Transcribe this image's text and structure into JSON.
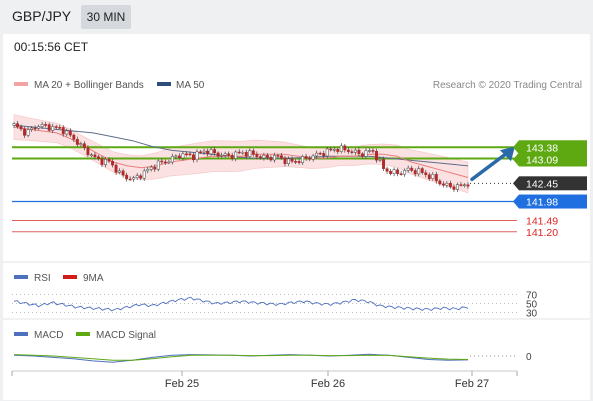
{
  "header": {
    "pair": "GBP/JPY",
    "timeframe": "30 MIN"
  },
  "clock": "00:15:56 CET",
  "price_legend": {
    "ma20": "MA 20 + Bollinger Bands",
    "ma50": "MA 50"
  },
  "credit": "Research © 2020 Trading Central",
  "rsi_legend": {
    "rsi": "RSI",
    "ma": "9MA"
  },
  "macd_legend": {
    "macd": "MACD",
    "signal": "MACD Signal"
  },
  "colors": {
    "resistance": "#5ea912",
    "support": "#1f6fe0",
    "pivot_red": "#e06060",
    "candle_up": "#ffffff",
    "candle_down": "#b02a2a",
    "ma20": "#e88080",
    "ma50": "#5d6d8a",
    "bollinger_fill": "#fbe1e1",
    "arrow": "#2b6aa8"
  },
  "chart_data": [
    {
      "type": "candlestick",
      "title": "",
      "x_tick_labels": [
        "Feb 25",
        "Feb 26",
        "Feb 27"
      ],
      "ylim": [
        140.6,
        144.6
      ],
      "legend": [
        "MA 20 + Bollinger Bands",
        "MA 50"
      ],
      "current_price": 142.45,
      "levels": [
        {
          "label": "143.38",
          "value": 143.38,
          "kind": "resistance"
        },
        {
          "label": "143.09",
          "value": 143.09,
          "kind": "resistance"
        },
        {
          "label": "142.45",
          "value": 142.45,
          "kind": "current"
        },
        {
          "label": "141.98",
          "value": 141.98,
          "kind": "pivot"
        },
        {
          "label": "141.49",
          "value": 141.49,
          "kind": "support"
        },
        {
          "label": "141.20",
          "value": 141.2,
          "kind": "support"
        }
      ],
      "close_path": [
        143.95,
        143.75,
        143.95,
        143.9,
        143.85,
        143.6,
        143.3,
        143.05,
        143.0,
        142.65,
        142.55,
        142.75,
        142.95,
        143.05,
        143.2,
        143.15,
        143.3,
        143.2,
        143.15,
        143.25,
        143.2,
        143.1,
        143.15,
        143.0,
        143.05,
        143.15,
        143.25,
        143.35,
        143.3,
        143.2,
        143.3,
        142.8,
        142.7,
        142.8,
        142.75,
        142.6,
        142.4,
        142.35,
        142.45
      ],
      "ma20": [
        143.9,
        143.85,
        143.8,
        143.75,
        143.6,
        143.4,
        143.2,
        143.0,
        142.9,
        142.85,
        142.9,
        143.0,
        143.05,
        143.1,
        143.15,
        143.15,
        143.15,
        143.2,
        143.2,
        143.2,
        143.15,
        143.1,
        143.1,
        143.15,
        143.15,
        143.2,
        143.2,
        143.15,
        143.0,
        142.9,
        142.8,
        142.7,
        142.6
      ],
      "ma50": [
        143.95,
        143.9,
        143.85,
        143.8,
        143.75,
        143.65,
        143.55,
        143.4,
        143.3,
        143.25,
        143.2,
        143.15,
        143.1,
        143.1,
        143.1,
        143.12,
        143.15,
        143.15,
        143.15,
        143.1,
        143.05,
        143.0,
        142.95,
        142.9
      ]
    },
    {
      "type": "line",
      "title": "RSI",
      "legend": [
        "RSI",
        "9MA"
      ],
      "y_tick_labels": [
        "70",
        "50",
        "30"
      ],
      "ylim": [
        20,
        80
      ],
      "series": [
        {
          "name": "RSI",
          "values": [
            55,
            50,
            45,
            52,
            47,
            42,
            40,
            38,
            36,
            42,
            48,
            45,
            52,
            58,
            62,
            56,
            50,
            52,
            55,
            52,
            50,
            48,
            52,
            55,
            50,
            48,
            52,
            58,
            55,
            45,
            42,
            40,
            38,
            37,
            40,
            38,
            42
          ]
        }
      ]
    },
    {
      "type": "line",
      "title": "MACD",
      "legend": [
        "MACD",
        "MACD Signal"
      ],
      "y_tick_labels": [
        "0"
      ],
      "ylim": [
        -1,
        1
      ],
      "series": [
        {
          "name": "MACD",
          "values": [
            0.05,
            0.0,
            -0.1,
            -0.2,
            -0.35,
            -0.45,
            -0.3,
            -0.1,
            0.05,
            0.1,
            0.08,
            0.05,
            0.0,
            0.05,
            0.1,
            0.05,
            0.0,
            0.05,
            0.12,
            0.05,
            -0.1,
            -0.25,
            -0.3,
            -0.28
          ]
        },
        {
          "name": "MACD Signal",
          "values": [
            0.1,
            0.05,
            0.0,
            -0.1,
            -0.2,
            -0.3,
            -0.3,
            -0.2,
            -0.05,
            0.05,
            0.06,
            0.05,
            0.03,
            0.03,
            0.05,
            0.05,
            0.03,
            0.03,
            0.06,
            0.04,
            -0.05,
            -0.15,
            -0.22,
            -0.25
          ]
        }
      ]
    }
  ]
}
